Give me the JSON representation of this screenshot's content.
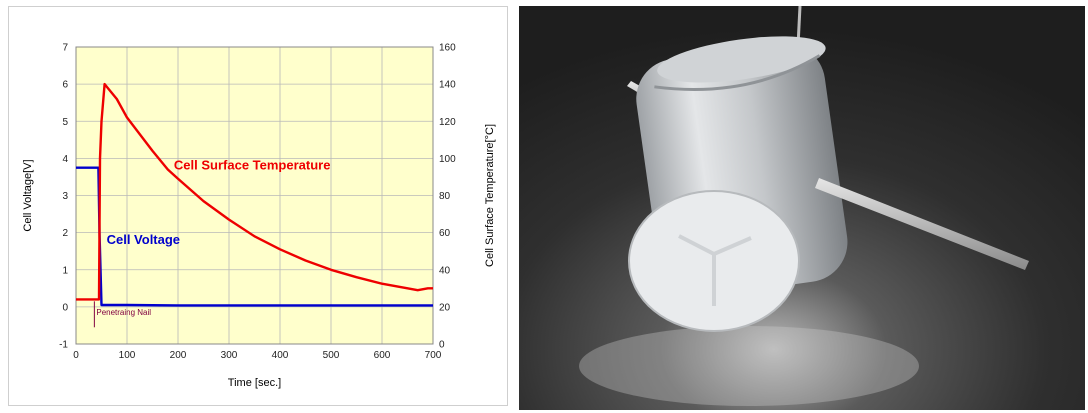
{
  "chart_data": {
    "type": "line",
    "title": "",
    "xlabel": "Time  [sec.]",
    "ylabel_left": "Cell Voltage[V]",
    "ylabel_right": "Cell Surface Temperature[°C]",
    "xlim": [
      0,
      700
    ],
    "ylim_left": [
      -1,
      7
    ],
    "ylim_right": [
      0,
      160
    ],
    "x_ticks": [
      "0",
      "100",
      "200",
      "300",
      "400",
      "500",
      "600",
      "700"
    ],
    "y_left_ticks": [
      "-1",
      "0",
      "1",
      "2",
      "3",
      "4",
      "5",
      "6",
      "7"
    ],
    "y_right_ticks": [
      "0",
      "20",
      "40",
      "60",
      "80",
      "100",
      "120",
      "140",
      "160"
    ],
    "grid": true,
    "plot_background": "#ffffcc",
    "series": [
      {
        "name": "Cell Voltage",
        "axis": "left",
        "color": "#0000cc",
        "x": [
          0,
          44,
          46,
          50,
          100,
          200,
          300,
          400,
          500,
          600,
          700
        ],
        "y": [
          3.75,
          3.75,
          2.0,
          0.05,
          0.05,
          0.04,
          0.04,
          0.04,
          0.04,
          0.04,
          0.04
        ]
      },
      {
        "name": "Cell Surface Temperature",
        "axis": "right",
        "color": "#ee0000",
        "x": [
          0,
          45,
          47,
          50,
          56,
          80,
          100,
          150,
          180,
          200,
          250,
          300,
          350,
          400,
          450,
          500,
          550,
          600,
          650,
          670,
          690,
          700
        ],
        "y": [
          24,
          24,
          100,
          120,
          140,
          132,
          122,
          104,
          94,
          89,
          77,
          67,
          58,
          51,
          45,
          40,
          36,
          32.5,
          30,
          29,
          30,
          30
        ]
      }
    ],
    "annotations": [
      {
        "text": "Penetraing Nail",
        "x": 36
      }
    ]
  },
  "photo": {
    "subject": "nail-penetrated-cylindrical-cell",
    "colors": {
      "background": "#2e2e2e",
      "can": "#d8dadc",
      "nail": "#c9c9c9"
    }
  }
}
